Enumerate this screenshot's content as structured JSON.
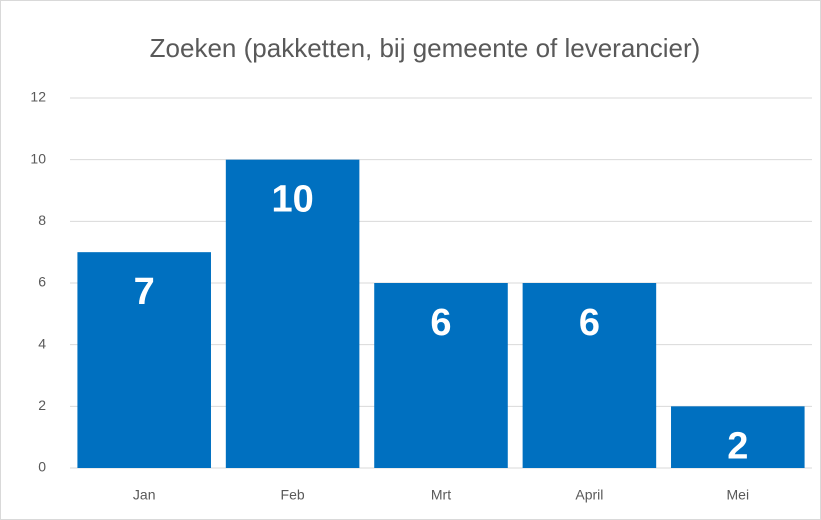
{
  "chart_data": {
    "type": "bar",
    "title": "Zoeken (pakketten, bij gemeente of leverancier)",
    "categories": [
      "Jan",
      "Feb",
      "Mrt",
      "April",
      "Mei"
    ],
    "values": [
      7,
      10,
      6,
      6,
      2
    ],
    "color": "#0070c0",
    "ylim": [
      0,
      12
    ],
    "yticks": [
      0,
      2,
      4,
      6,
      8,
      10,
      12
    ],
    "grid": true
  }
}
